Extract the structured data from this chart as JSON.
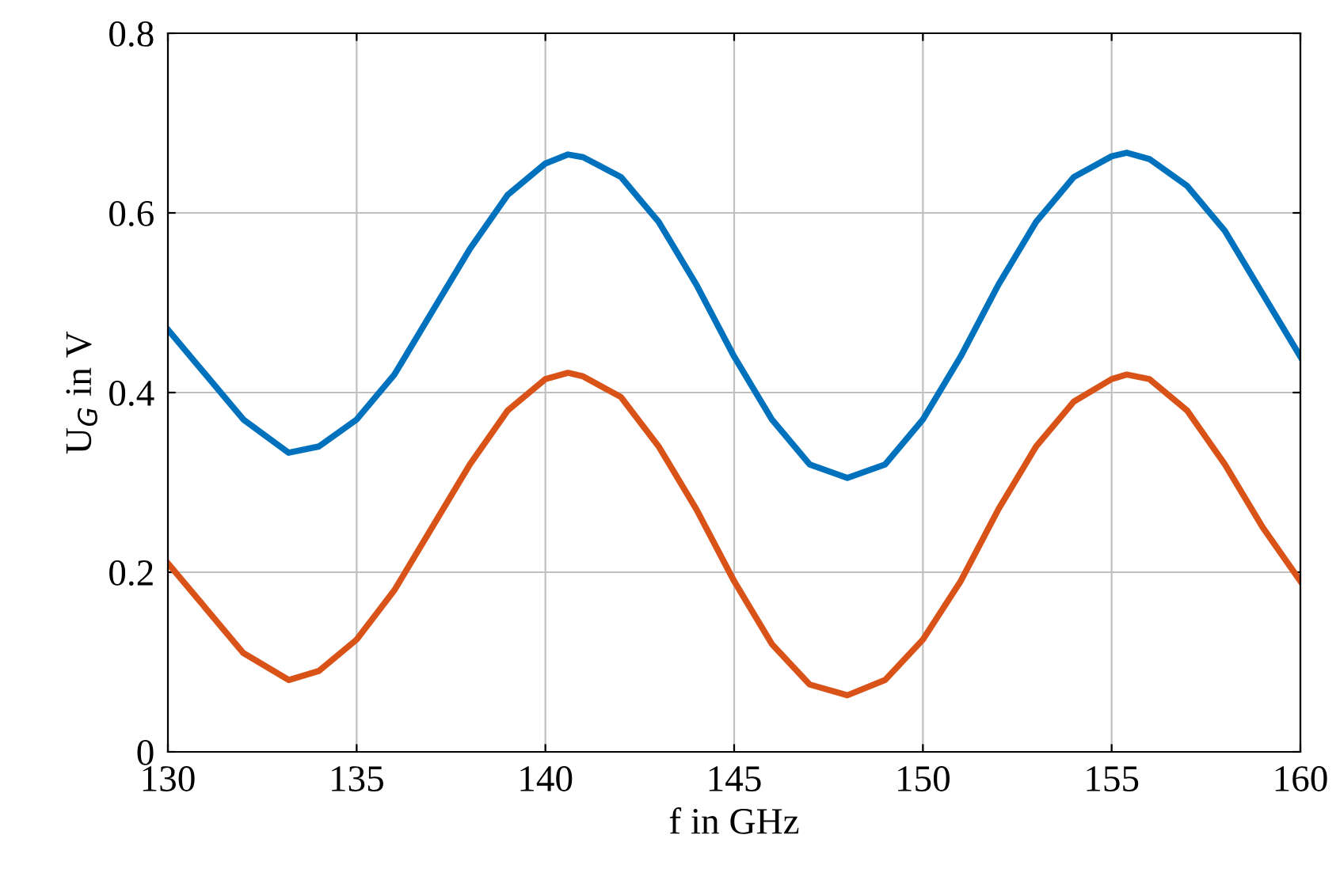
{
  "chart_data": {
    "type": "line",
    "xlabel": "f in GHz",
    "ylabel": "U$_{G}$ in V",
    "xlim": [
      130,
      160
    ],
    "ylim": [
      0,
      0.8
    ],
    "xticks": [
      130,
      135,
      140,
      145,
      150,
      155,
      160
    ],
    "yticks": [
      0,
      0.2,
      0.4,
      0.6,
      0.8
    ],
    "grid": true,
    "marker": "none",
    "line_style": "solid",
    "series": [
      {
        "color": "#0072bd",
        "x": [
          130,
          131,
          132,
          133.2,
          134,
          135,
          136,
          137,
          138,
          139,
          140,
          140.6,
          141,
          142,
          143,
          144,
          145,
          146,
          147,
          148,
          149,
          150,
          151,
          152,
          153,
          154,
          155,
          155.4,
          156,
          157,
          158,
          159,
          160
        ],
        "values": [
          0.47,
          0.42,
          0.37,
          0.333,
          0.34,
          0.37,
          0.42,
          0.49,
          0.56,
          0.62,
          0.655,
          0.665,
          0.662,
          0.64,
          0.59,
          0.52,
          0.44,
          0.37,
          0.32,
          0.305,
          0.32,
          0.37,
          0.44,
          0.52,
          0.59,
          0.64,
          0.663,
          0.667,
          0.66,
          0.63,
          0.58,
          0.51,
          0.44
        ]
      },
      {
        "color": "#d95319",
        "x": [
          130,
          131,
          132,
          133.2,
          134,
          135,
          136,
          137,
          138,
          139,
          140,
          140.6,
          141,
          142,
          143,
          144,
          145,
          146,
          147,
          148,
          149,
          150,
          151,
          152,
          153,
          154,
          155,
          155.4,
          156,
          157,
          158,
          159,
          160
        ],
        "values": [
          0.21,
          0.16,
          0.11,
          0.08,
          0.09,
          0.125,
          0.18,
          0.25,
          0.32,
          0.38,
          0.415,
          0.422,
          0.418,
          0.395,
          0.34,
          0.27,
          0.19,
          0.12,
          0.075,
          0.063,
          0.08,
          0.125,
          0.19,
          0.27,
          0.34,
          0.39,
          0.415,
          0.42,
          0.415,
          0.38,
          0.32,
          0.25,
          0.19
        ]
      }
    ]
  }
}
